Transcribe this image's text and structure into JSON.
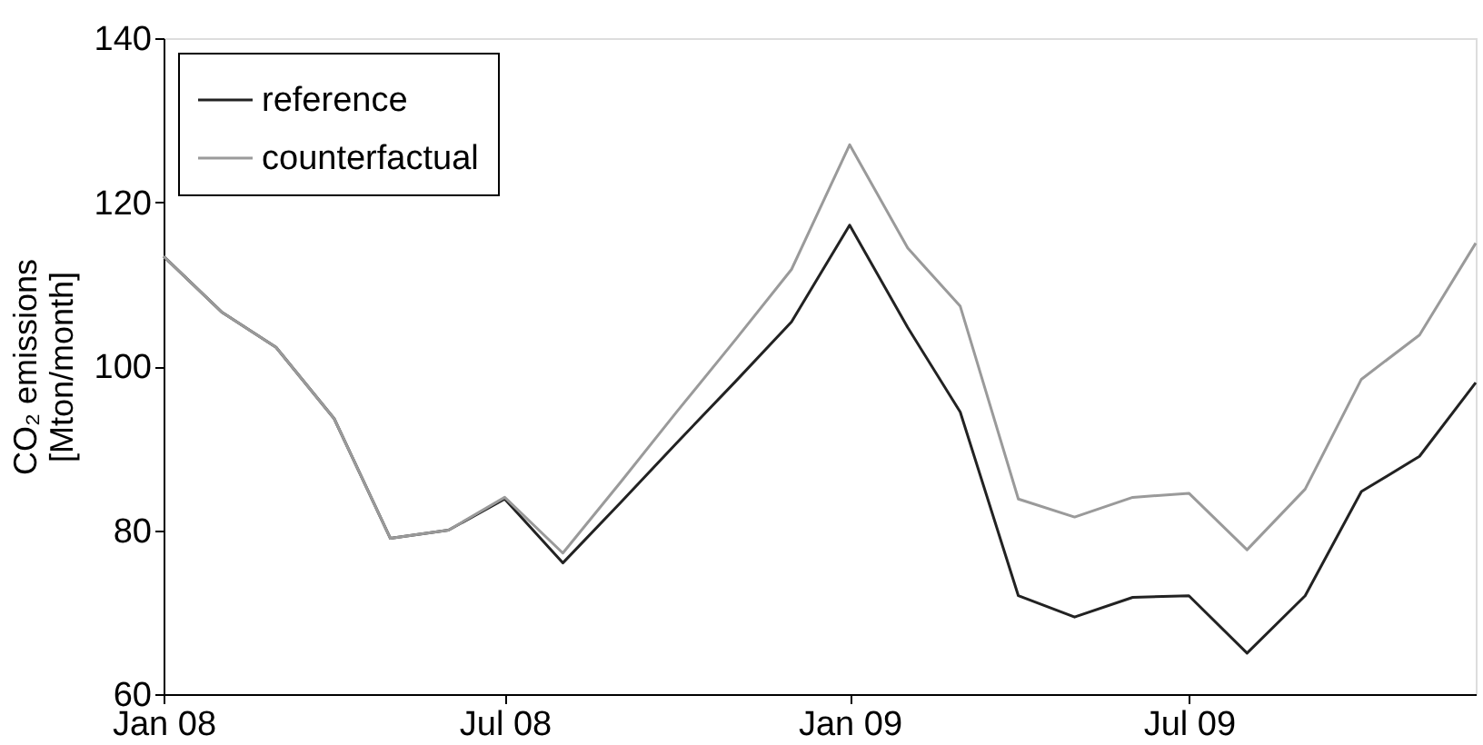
{
  "chart_data": {
    "type": "line",
    "ylabel": "CO₂ emissions\n[Mton/month]",
    "x": [
      "2008-01",
      "2008-02",
      "2008-03",
      "2008-04",
      "2008-05",
      "2008-06",
      "2008-07",
      "2008-08",
      "2008-09",
      "2008-10",
      "2008-11",
      "2008-12",
      "2009-01",
      "2009-02",
      "2009-03",
      "2009-04",
      "2009-05",
      "2009-06",
      "2009-07",
      "2009-08",
      "2009-09",
      "2009-10",
      "2009-11",
      "2009-12"
    ],
    "series": [
      {
        "name": "reference",
        "color": "#222222",
        "values": [
          113.4,
          106.6,
          102.3,
          93.6,
          79,
          80,
          83.8,
          76,
          83.4,
          90.7,
          98.1,
          105.4,
          117.2,
          104.7,
          94.4,
          72,
          69.4,
          71.8,
          72,
          65,
          72,
          84.7,
          89,
          98
        ]
      },
      {
        "name": "counterfactual",
        "color": "#9a9a9a",
        "values": [
          113.4,
          106.6,
          102.3,
          93.6,
          79,
          80,
          84,
          77.2,
          85.9,
          94.5,
          103.2,
          111.8,
          127,
          114.4,
          107.3,
          83.8,
          81.6,
          84,
          84.5,
          77.6,
          85,
          98.4,
          103.8,
          115
        ]
      }
    ],
    "xlim": [
      "2008-01",
      "2009-12"
    ],
    "xticks": [
      {
        "value": "2008-01",
        "label": "Jan 08"
      },
      {
        "value": "2008-07",
        "label": "Jul 08"
      },
      {
        "value": "2009-01",
        "label": "Jan 09"
      },
      {
        "value": "2009-07",
        "label": "Jul 09"
      }
    ],
    "ylim": [
      60,
      140
    ],
    "yticks": [
      60,
      80,
      100,
      120,
      140
    ],
    "grid": false,
    "legend": "top left",
    "marker": "none",
    "line_style": "solid"
  }
}
